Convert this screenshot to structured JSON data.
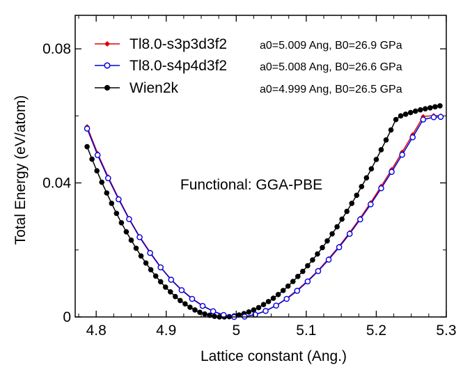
{
  "chart_data": {
    "type": "line",
    "title": "",
    "xlabel": "Lattice constant (Ang.)",
    "ylabel": "Total Energy (eV/atom)",
    "xlim": [
      4.77,
      5.3
    ],
    "ylim": [
      0,
      0.09
    ],
    "x_ticks": [
      4.8,
      4.9,
      5.0,
      5.1,
      5.2,
      5.3
    ],
    "x_tick_labels": [
      "4.8",
      "4.9",
      "5",
      "5.1",
      "5.2",
      "5.3"
    ],
    "y_ticks": [
      0,
      0.04,
      0.08
    ],
    "y_tick_labels": [
      "0",
      "0.04",
      "0.08"
    ],
    "grid": false,
    "legend_position": "top-left",
    "annotation": "Functional: GGA-PBE",
    "series": [
      {
        "name": "Tl8.0-s3p3d3f2",
        "note": "a0=5.009 Ang, B0=26.9 GPa",
        "color": "#e00000",
        "marker": "filled-diamond",
        "x0": 5.009,
        "x": [
          4.787,
          4.802,
          4.817,
          4.832,
          4.847,
          4.862,
          4.877,
          4.892,
          4.907,
          4.922,
          4.937,
          4.952,
          4.967,
          4.982,
          4.997,
          5.012,
          5.027,
          5.042,
          5.057,
          5.072,
          5.087,
          5.102,
          5.117,
          5.132,
          5.147,
          5.162,
          5.177,
          5.192,
          5.207,
          5.222,
          5.237,
          5.252,
          5.267,
          5.282,
          5.292
        ],
        "y": [
          0.0568,
          0.0488,
          0.0418,
          0.0354,
          0.0294,
          0.024,
          0.0193,
          0.0149,
          0.0112,
          0.0081,
          0.0055,
          0.0034,
          0.0017,
          0.0006,
          0.0,
          0.0001,
          0.0007,
          0.0018,
          0.0034,
          0.0055,
          0.008,
          0.0108,
          0.0139,
          0.0174,
          0.0211,
          0.0252,
          0.0295,
          0.0341,
          0.039,
          0.044,
          0.0492,
          0.0544,
          0.0598,
          0.0601,
          0.06
        ]
      },
      {
        "name": "Tl8.0-s4p4d3f2",
        "note": "a0=5.008 Ang, B0=26.6 GPa",
        "color": "#0000dd",
        "marker": "open-circle",
        "x0": 5.008,
        "x": [
          4.787,
          4.802,
          4.817,
          4.832,
          4.847,
          4.862,
          4.877,
          4.892,
          4.907,
          4.922,
          4.937,
          4.952,
          4.967,
          4.982,
          4.997,
          5.012,
          5.027,
          5.042,
          5.057,
          5.072,
          5.087,
          5.102,
          5.117,
          5.132,
          5.147,
          5.162,
          5.177,
          5.192,
          5.207,
          5.222,
          5.237,
          5.252,
          5.267,
          5.282,
          5.292
        ],
        "y": [
          0.0562,
          0.0483,
          0.0414,
          0.0351,
          0.0292,
          0.0238,
          0.0191,
          0.0148,
          0.0111,
          0.008,
          0.0054,
          0.0033,
          0.0017,
          0.0006,
          0.0,
          0.0001,
          0.0007,
          0.0018,
          0.0034,
          0.0054,
          0.0078,
          0.0106,
          0.0137,
          0.0171,
          0.0208,
          0.0248,
          0.0291,
          0.0336,
          0.0384,
          0.0433,
          0.0484,
          0.0536,
          0.0589,
          0.0596,
          0.0597
        ]
      },
      {
        "name": "Wien2k",
        "note": "a0=4.999 Ang, B0=26.5 GPa",
        "color": "#000000",
        "marker": "filled-circle",
        "x0": 4.999,
        "x": [
          4.787,
          4.794,
          4.801,
          4.808,
          4.815,
          4.822,
          4.829,
          4.836,
          4.843,
          4.85,
          4.857,
          4.864,
          4.871,
          4.878,
          4.885,
          4.892,
          4.899,
          4.906,
          4.913,
          4.92,
          4.927,
          4.934,
          4.941,
          4.948,
          4.955,
          4.962,
          4.969,
          4.976,
          4.983,
          4.99,
          4.997,
          5.004,
          5.011,
          5.018,
          5.025,
          5.032,
          5.039,
          5.046,
          5.053,
          5.06,
          5.067,
          5.074,
          5.081,
          5.088,
          5.095,
          5.102,
          5.109,
          5.116,
          5.123,
          5.13,
          5.137,
          5.144,
          5.151,
          5.158,
          5.165,
          5.172,
          5.179,
          5.186,
          5.193,
          5.2,
          5.207,
          5.214,
          5.221,
          5.228,
          5.235,
          5.242,
          5.249,
          5.256,
          5.263,
          5.27,
          5.277,
          5.284,
          5.291
        ],
        "y": [
          0.0508,
          0.0471,
          0.0436,
          0.0402,
          0.037,
          0.0339,
          0.0309,
          0.0281,
          0.0254,
          0.0229,
          0.0205,
          0.0182,
          0.0161,
          0.0141,
          0.0122,
          0.0105,
          0.0089,
          0.0075,
          0.0061,
          0.0049,
          0.0039,
          0.0029,
          0.0021,
          0.0014,
          0.0009,
          0.0005,
          0.0002,
          0.0,
          0.0,
          0.0001,
          0.0003,
          0.0006,
          0.001,
          0.0015,
          0.0021,
          0.0028,
          0.0037,
          0.0046,
          0.0056,
          0.0067,
          0.0079,
          0.0092,
          0.0106,
          0.0121,
          0.0136,
          0.0153,
          0.017,
          0.0188,
          0.0207,
          0.0227,
          0.0248,
          0.0269,
          0.0292,
          0.0315,
          0.0339,
          0.0363,
          0.0389,
          0.0415,
          0.0442,
          0.047,
          0.0499,
          0.0528,
          0.0558,
          0.0589,
          0.06,
          0.0605,
          0.061,
          0.0614,
          0.0618,
          0.0621,
          0.0624,
          0.0627,
          0.063
        ]
      }
    ]
  }
}
